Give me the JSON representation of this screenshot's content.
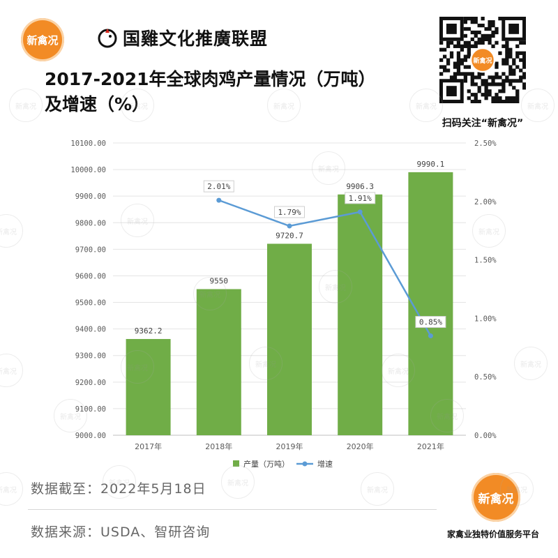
{
  "header": {
    "logo_badge_text": "新禽况",
    "partner_name": "国雞文化推廣联盟",
    "title_line1": "2017-2021年全球肉鸡产量情况（万吨）",
    "title_line2": "及增速（%）",
    "qr_badge_text": "新禽况",
    "qr_caption": "扫码关注“新禽况”"
  },
  "watermark_text": "新禽况",
  "footer": {
    "data_date": "数据截至：2022年5月18日",
    "data_source": "数据来源：USDA、智研咨询",
    "badge_text": "新禽况",
    "platform": "家禽业独特价值服务平台"
  },
  "colors": {
    "bar": "#70ad47",
    "line": "#5b9bd5",
    "badge": "#f28b25"
  },
  "chart_data": {
    "type": "bar",
    "categories": [
      "2017年",
      "2018年",
      "2019年",
      "2020年",
      "2021年"
    ],
    "series": [
      {
        "name": "产量（万吨）",
        "type": "bar",
        "axis": "left",
        "values": [
          9362.2,
          9550,
          9720.7,
          9906.3,
          9990.1
        ],
        "labels": [
          "9362.2",
          "9550",
          "9720.7",
          "9906.3",
          "9990.1"
        ]
      },
      {
        "name": "增速",
        "type": "line",
        "axis": "right",
        "values": [
          null,
          2.01,
          1.79,
          1.91,
          0.85
        ],
        "labels": [
          "",
          "2.01%",
          "1.79%",
          "1.91%",
          "0.85%"
        ]
      }
    ],
    "y_left": {
      "min": 9000,
      "max": 10100,
      "ticks": [
        "9000.00",
        "9100.00",
        "9200.00",
        "9300.00",
        "9400.00",
        "9500.00",
        "9600.00",
        "9700.00",
        "9800.00",
        "9900.00",
        "10000.00",
        "10100.00"
      ]
    },
    "y_right": {
      "min": 0,
      "max": 2.5,
      "ticks": [
        "0.00%",
        "0.50%",
        "1.00%",
        "1.50%",
        "2.00%",
        "2.50%"
      ]
    },
    "grid": true,
    "legend_position": "bottom"
  }
}
